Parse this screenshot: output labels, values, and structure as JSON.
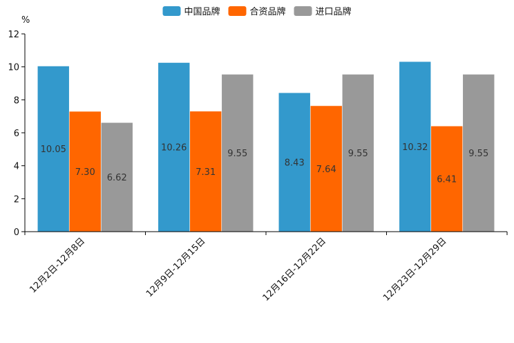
{
  "chart_data": {
    "type": "bar",
    "unit_label": "%",
    "categories": [
      "12月2日-12月8日",
      "12月9日-12月15日",
      "12月16日-12月22日",
      "12月23日-12月29日"
    ],
    "series": [
      {
        "name": "中国品牌",
        "color": "#3399cc",
        "values": [
          10.05,
          10.26,
          8.43,
          10.32
        ],
        "labels": [
          "10.05",
          "10.26",
          "8.43",
          "10.32"
        ]
      },
      {
        "name": "合资品牌",
        "color": "#ff6600",
        "values": [
          7.3,
          7.31,
          7.64,
          6.41
        ],
        "labels": [
          "7.30",
          "7.31",
          "7.64",
          "6.41"
        ]
      },
      {
        "name": "进口品牌",
        "color": "#999999",
        "values": [
          6.62,
          9.55,
          9.55,
          9.55
        ],
        "labels": [
          "6.62",
          "9.55",
          "9.55",
          "9.55"
        ]
      }
    ],
    "ylim": [
      0,
      12
    ],
    "yticks": [
      0,
      2,
      4,
      6,
      8,
      10,
      12
    ],
    "grid": false,
    "legend": "top-center"
  }
}
